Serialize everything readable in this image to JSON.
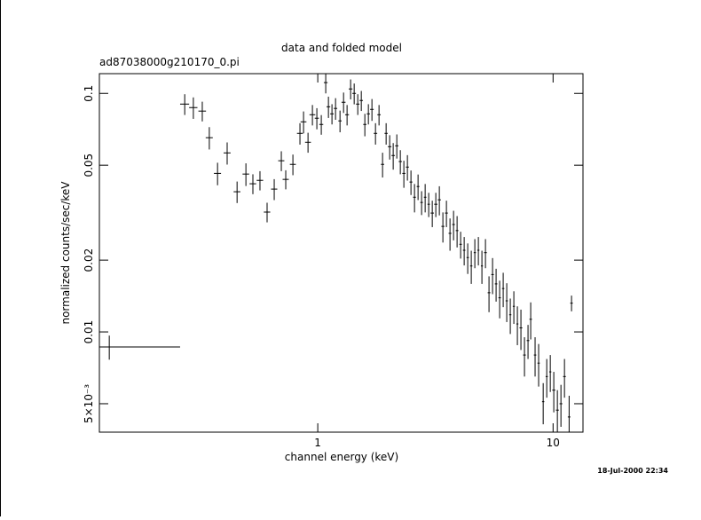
{
  "chart_data": {
    "type": "errorbar",
    "title": "data and folded model",
    "subtitle": "ad87038000g210170_0.pi",
    "x_label": "channel energy (keV)",
    "y_label": "normalized counts/sec/keV",
    "timestamp": "18-Jul-2000 22:34",
    "xscale": "log",
    "yscale": "log",
    "color": "#000000",
    "xlim": [
      0.118,
      13.4
    ],
    "ylim": [
      0.0038,
      0.121
    ],
    "xticks": [
      1,
      10
    ],
    "yticks": [
      {
        "value": 0.005,
        "label": "5×10⁻³"
      },
      0.01,
      0.02,
      0.05,
      0.1
    ],
    "x": [
      0.13,
      0.272,
      0.296,
      0.323,
      0.346,
      0.375,
      0.412,
      0.454,
      0.495,
      0.53,
      0.568,
      0.609,
      0.653,
      0.7,
      0.731,
      0.784,
      0.84,
      0.87,
      0.909,
      0.949,
      0.991,
      1.035,
      1.081,
      1.11,
      1.149,
      1.19,
      1.243,
      1.287,
      1.332,
      1.379,
      1.428,
      1.479,
      1.531,
      1.585,
      1.641,
      1.699,
      1.759,
      1.821,
      1.885,
      1.952,
      2.021,
      2.092,
      2.167,
      2.243,
      2.322,
      2.404,
      2.489,
      2.577,
      2.668,
      2.762,
      2.86,
      2.961,
      3.066,
      3.174,
      3.286,
      3.402,
      3.522,
      3.647,
      3.776,
      3.909,
      4.047,
      4.19,
      4.338,
      4.491,
      4.65,
      4.814,
      4.984,
      5.16,
      5.342,
      5.531,
      5.726,
      5.929,
      6.138,
      6.355,
      6.579,
      6.812,
      7.052,
      7.301,
      7.559,
      7.826,
      8.034,
      8.386,
      8.682,
      9.078,
      9.399,
      9.731,
      10.07,
      10.43,
      10.8,
      11.18,
      11.7,
      11.98
    ],
    "xerr": [
      0.13,
      0.012,
      0.012,
      0.012,
      0.012,
      0.013,
      0.014,
      0.015,
      0.016,
      0.017,
      0.018,
      0.019,
      0.02,
      0.021,
      0.022,
      0.023,
      0.024,
      0.025,
      0.026,
      0.027,
      0.02,
      0.02,
      0.02,
      0.02,
      0.02,
      0.02,
      0.02,
      0.025,
      0.025,
      0.025,
      0.025,
      0.025,
      0.025,
      0.025,
      0.025,
      0.03,
      0.03,
      0.03,
      0.03,
      0.03,
      0.035,
      0.035,
      0.035,
      0.035,
      0.035,
      0.035,
      0.035,
      0.035,
      0.035,
      0.035,
      0.035,
      0.035,
      0.05,
      0.05,
      0.05,
      0.05,
      0.05,
      0.05,
      0.05,
      0.05,
      0.05,
      0.05,
      0.05,
      0.05,
      0.05,
      0.05,
      0.05,
      0.07,
      0.07,
      0.07,
      0.07,
      0.07,
      0.07,
      0.07,
      0.07,
      0.07,
      0.07,
      0.1,
      0.1,
      0.1,
      0.1,
      0.1,
      0.1,
      0.1,
      0.1,
      0.1,
      0.15,
      0.15,
      0.15,
      0.15,
      0.15,
      0.15
    ],
    "values": [
      0.00865,
      0.0902,
      0.0872,
      0.0843,
      0.0652,
      0.0462,
      0.0563,
      0.0387,
      0.0459,
      0.0418,
      0.0432,
      0.0318,
      0.0397,
      0.0522,
      0.0436,
      0.0504,
      0.068,
      0.076,
      0.0624,
      0.0814,
      0.0787,
      0.0741,
      0.111,
      0.0879,
      0.0821,
      0.0865,
      0.0767,
      0.0918,
      0.0814,
      0.1044,
      0.1,
      0.0902,
      0.0934,
      0.0741,
      0.0821,
      0.0857,
      0.068,
      0.0814,
      0.0504,
      0.068,
      0.0598,
      0.0549,
      0.0603,
      0.0518,
      0.0462,
      0.0491,
      0.0425,
      0.0367,
      0.0407,
      0.0349,
      0.0367,
      0.0343,
      0.0315,
      0.0343,
      0.0358,
      0.0277,
      0.0315,
      0.0259,
      0.0282,
      0.0266,
      0.0233,
      0.022,
      0.0205,
      0.0189,
      0.0215,
      0.022,
      0.0189,
      0.0215,
      0.0146,
      0.0174,
      0.0159,
      0.0139,
      0.0152,
      0.0135,
      0.0118,
      0.0128,
      0.0108,
      0.0104,
      0.008,
      0.0092,
      0.0113,
      0.008,
      0.0074,
      0.0051,
      0.0065,
      0.0068,
      0.0057,
      0.0047,
      0.005,
      0.0065,
      0.0044,
      0.0132
    ],
    "yerr": [
      0.001,
      0.009,
      0.009,
      0.008,
      0.007,
      0.005,
      0.006,
      0.004,
      0.005,
      0.004,
      0.004,
      0.003,
      0.004,
      0.005,
      0.004,
      0.005,
      0.007,
      0.008,
      0.006,
      0.008,
      0.008,
      0.007,
      0.011,
      0.009,
      0.008,
      0.009,
      0.008,
      0.009,
      0.008,
      0.01,
      0.01,
      0.009,
      0.009,
      0.008,
      0.008,
      0.009,
      0.007,
      0.008,
      0.006,
      0.007,
      0.007,
      0.007,
      0.007,
      0.006,
      0.006,
      0.006,
      0.005,
      0.005,
      0.005,
      0.004,
      0.005,
      0.004,
      0.004,
      0.004,
      0.005,
      0.004,
      0.004,
      0.004,
      0.004,
      0.004,
      0.003,
      0.003,
      0.003,
      0.003,
      0.003,
      0.003,
      0.003,
      0.003,
      0.0025,
      0.003,
      0.0025,
      0.0025,
      0.0025,
      0.0025,
      0.002,
      0.002,
      0.002,
      0.002,
      0.0015,
      0.0015,
      0.002,
      0.0015,
      0.0015,
      0.001,
      0.0012,
      0.0012,
      0.0011,
      0.001,
      0.001,
      0.0012,
      0.001,
      0.001
    ]
  }
}
